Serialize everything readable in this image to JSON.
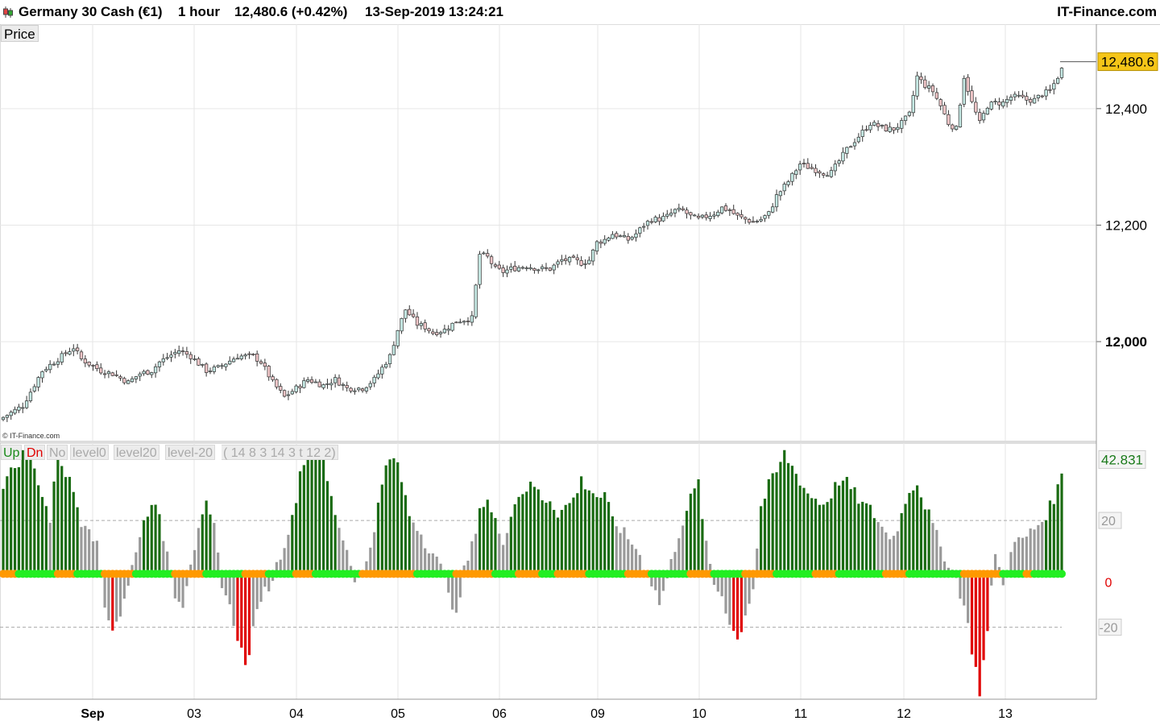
{
  "header": {
    "instrument": "Germany 30 Cash (€1)",
    "timeframe": "1 hour",
    "last": "12,480.6 (+0.42%)",
    "datetime": "13-Sep-2019 13:24:21",
    "brand": "IT-Finance.com"
  },
  "price_panel": {
    "label": "Price",
    "watermark": "© IT-Finance.com",
    "current_price_tag": "12,480.6"
  },
  "indicator_panel": {
    "legend": {
      "up": "Up",
      "dn": "Dn",
      "no": "No",
      "level0": "level0",
      "level20": "level20",
      "levelm20": "level-20",
      "params": "( 14 8 3 14 3 t 12 2)"
    },
    "current_value_tag": "42.831"
  },
  "colors": {
    "up_candle": "#c5e8e3",
    "down_candle": "#f0c6c8",
    "hist_up": "#1a6b12",
    "hist_dn": "#e00000",
    "hist_neutral": "#9a9a9a",
    "dot_up": "#22ee22",
    "dot_dn": "#ff9900",
    "price_tag_bg": "#f5c518",
    "value_tag_text": "#1a7a1a",
    "zero_tag_text": "#e00000"
  },
  "chart_data": [
    {
      "type": "candlestick",
      "title": "Price",
      "x_ticks": [
        "Sep",
        "03",
        "04",
        "05",
        "06",
        "09",
        "10",
        "11",
        "12",
        "13"
      ],
      "y_ticks": [
        12000,
        12200,
        12400
      ],
      "ylim": [
        11830,
        12545
      ],
      "grid": true,
      "last_value": 12480.6,
      "close_path": [
        [
          0,
          11870
        ],
        [
          5,
          11890
        ],
        [
          10,
          11950
        ],
        [
          15,
          11975
        ],
        [
          18,
          11990
        ],
        [
          20,
          11970
        ],
        [
          25,
          11950
        ],
        [
          28,
          11945
        ],
        [
          32,
          11930
        ],
        [
          35,
          11945
        ],
        [
          38,
          11950
        ],
        [
          40,
          11965
        ],
        [
          45,
          11985
        ],
        [
          48,
          11975
        ],
        [
          52,
          11950
        ],
        [
          55,
          11955
        ],
        [
          60,
          11975
        ],
        [
          64,
          11975
        ],
        [
          66,
          11965
        ],
        [
          69,
          11930
        ],
        [
          72,
          11905
        ],
        [
          75,
          11920
        ],
        [
          78,
          11935
        ],
        [
          82,
          11925
        ],
        [
          85,
          11935
        ],
        [
          88,
          11920
        ],
        [
          92,
          11920
        ],
        [
          95,
          11935
        ],
        [
          99,
          11975
        ],
        [
          101,
          12020
        ],
        [
          103,
          12055
        ],
        [
          106,
          12030
        ],
        [
          108,
          12025
        ],
        [
          110,
          12015
        ],
        [
          113,
          12020
        ],
        [
          116,
          12035
        ],
        [
          120,
          12040
        ],
        [
          122,
          12150
        ],
        [
          124,
          12145
        ],
        [
          126,
          12125
        ],
        [
          128,
          12120
        ],
        [
          130,
          12125
        ],
        [
          134,
          12130
        ],
        [
          137,
          12125
        ],
        [
          140,
          12125
        ],
        [
          143,
          12140
        ],
        [
          146,
          12140
        ],
        [
          148,
          12135
        ],
        [
          150,
          12140
        ],
        [
          152,
          12170
        ],
        [
          154,
          12175
        ],
        [
          156,
          12185
        ],
        [
          158,
          12180
        ],
        [
          160,
          12175
        ],
        [
          162,
          12185
        ],
        [
          164,
          12200
        ],
        [
          166,
          12210
        ],
        [
          168,
          12210
        ],
        [
          170,
          12215
        ],
        [
          172,
          12225
        ],
        [
          174,
          12225
        ],
        [
          176,
          12215
        ],
        [
          178,
          12210
        ],
        [
          180,
          12215
        ],
        [
          182,
          12220
        ],
        [
          184,
          12230
        ],
        [
          186,
          12225
        ],
        [
          188,
          12215
        ],
        [
          190,
          12210
        ],
        [
          192,
          12205
        ],
        [
          194,
          12210
        ],
        [
          196,
          12220
        ],
        [
          198,
          12250
        ],
        [
          201,
          12275
        ],
        [
          204,
          12305
        ],
        [
          206,
          12300
        ],
        [
          208,
          12295
        ],
        [
          210,
          12290
        ],
        [
          212,
          12290
        ],
        [
          214,
          12310
        ],
        [
          216,
          12330
        ],
        [
          218,
          12345
        ],
        [
          220,
          12360
        ],
        [
          222,
          12375
        ],
        [
          224,
          12370
        ],
        [
          226,
          12365
        ],
        [
          228,
          12365
        ],
        [
          230,
          12375
        ],
        [
          232,
          12390
        ],
        [
          234,
          12455
        ],
        [
          236,
          12440
        ],
        [
          238,
          12430
        ],
        [
          240,
          12405
        ],
        [
          242,
          12375
        ],
        [
          244,
          12365
        ],
        [
          246,
          12455
        ],
        [
          248,
          12410
        ],
        [
          250,
          12375
        ],
        [
          252,
          12405
        ],
        [
          254,
          12410
        ],
        [
          256,
          12410
        ],
        [
          258,
          12420
        ],
        [
          260,
          12420
        ],
        [
          262,
          12415
        ],
        [
          264,
          12415
        ],
        [
          266,
          12425
        ],
        [
          268,
          12430
        ],
        [
          270,
          12455
        ],
        [
          272,
          12480
        ]
      ],
      "count": 272
    },
    {
      "type": "bar",
      "title": "Up Dn No level0 level20 level-20",
      "y_ticks": [
        20,
        0,
        -20
      ],
      "ylim": [
        -47,
        49
      ],
      "reference_lines": [
        20,
        0,
        -20
      ],
      "last_value": 42.831,
      "values_path": [
        [
          0,
          34
        ],
        [
          3,
          40
        ],
        [
          6,
          47
        ],
        [
          9,
          35
        ],
        [
          12,
          20
        ],
        [
          14,
          45
        ],
        [
          16,
          38
        ],
        [
          18,
          31
        ],
        [
          20,
          20
        ],
        [
          22,
          19
        ],
        [
          24,
          10
        ],
        [
          26,
          -12
        ],
        [
          28,
          -20
        ],
        [
          30,
          -15
        ],
        [
          32,
          -5
        ],
        [
          34,
          10
        ],
        [
          36,
          19
        ],
        [
          38,
          28
        ],
        [
          40,
          20
        ],
        [
          42,
          8
        ],
        [
          44,
          -7
        ],
        [
          46,
          -11
        ],
        [
          48,
          5
        ],
        [
          50,
          15
        ],
        [
          52,
          25
        ],
        [
          54,
          17
        ],
        [
          56,
          -3
        ],
        [
          58,
          -13
        ],
        [
          60,
          -23
        ],
        [
          62,
          -35
        ],
        [
          64,
          -22
        ],
        [
          66,
          -8
        ],
        [
          68,
          -5
        ],
        [
          70,
          3
        ],
        [
          72,
          12
        ],
        [
          74,
          20
        ],
        [
          76,
          38
        ],
        [
          78,
          47
        ],
        [
          80,
          49
        ],
        [
          82,
          42
        ],
        [
          84,
          28
        ],
        [
          86,
          18
        ],
        [
          88,
          9
        ],
        [
          90,
          -1
        ],
        [
          92,
          -1
        ],
        [
          94,
          11
        ],
        [
          96,
          25
        ],
        [
          98,
          40
        ],
        [
          100,
          44
        ],
        [
          102,
          35
        ],
        [
          104,
          22
        ],
        [
          106,
          18
        ],
        [
          108,
          12
        ],
        [
          110,
          8
        ],
        [
          112,
          2
        ],
        [
          114,
          -5
        ],
        [
          116,
          -17
        ],
        [
          118,
          1
        ],
        [
          120,
          10
        ],
        [
          122,
          25
        ],
        [
          124,
          27
        ],
        [
          126,
          19
        ],
        [
          128,
          13
        ],
        [
          130,
          22
        ],
        [
          132,
          30
        ],
        [
          134,
          32
        ],
        [
          136,
          33
        ],
        [
          138,
          28
        ],
        [
          140,
          28
        ],
        [
          142,
          23
        ],
        [
          144,
          25
        ],
        [
          146,
          28
        ],
        [
          148,
          35
        ],
        [
          150,
          32
        ],
        [
          152,
          29
        ],
        [
          154,
          29
        ],
        [
          156,
          20
        ],
        [
          158,
          17
        ],
        [
          160,
          13
        ],
        [
          162,
          10
        ],
        [
          164,
          3
        ],
        [
          166,
          -3
        ],
        [
          168,
          -11
        ],
        [
          170,
          -2
        ],
        [
          172,
          10
        ],
        [
          174,
          20
        ],
        [
          176,
          28
        ],
        [
          178,
          34
        ],
        [
          180,
          10
        ],
        [
          182,
          -4
        ],
        [
          184,
          -8
        ],
        [
          186,
          -18
        ],
        [
          188,
          -25
        ],
        [
          190,
          -15
        ],
        [
          192,
          -5
        ],
        [
          194,
          25
        ],
        [
          196,
          33
        ],
        [
          198,
          38
        ],
        [
          200,
          45
        ],
        [
          202,
          40
        ],
        [
          204,
          35
        ],
        [
          206,
          30
        ],
        [
          208,
          28
        ],
        [
          210,
          26
        ],
        [
          212,
          30
        ],
        [
          214,
          35
        ],
        [
          216,
          34
        ],
        [
          218,
          30
        ],
        [
          220,
          26
        ],
        [
          222,
          24
        ],
        [
          224,
          20
        ],
        [
          226,
          15
        ],
        [
          228,
          14
        ],
        [
          230,
          22
        ],
        [
          232,
          32
        ],
        [
          234,
          34
        ],
        [
          236,
          26
        ],
        [
          238,
          18
        ],
        [
          240,
          10
        ],
        [
          242,
          4
        ],
        [
          244,
          -2
        ],
        [
          246,
          -12
        ],
        [
          248,
          -28
        ],
        [
          250,
          -44
        ],
        [
          252,
          -22
        ],
        [
          254,
          9
        ],
        [
          256,
          -5
        ],
        [
          258,
          10
        ],
        [
          260,
          12
        ],
        [
          262,
          14
        ],
        [
          264,
          17
        ],
        [
          266,
          20
        ],
        [
          268,
          25
        ],
        [
          270,
          32
        ],
        [
          272,
          42.8
        ]
      ],
      "dot_states": [
        "dn",
        0,
        "up",
        4,
        "dn",
        14,
        "up",
        19,
        "dn",
        26,
        "up",
        34,
        "dn",
        44,
        "up",
        52,
        "dn",
        62,
        "up",
        68,
        "dn",
        75,
        "up",
        80,
        "dn",
        92,
        "up",
        106,
        "dn",
        116,
        "up",
        126,
        "dn",
        132,
        "up",
        138,
        "dn",
        142,
        "up",
        150,
        "dn",
        160,
        "up",
        166,
        "dn",
        176,
        "up",
        182,
        "dn",
        190,
        "up",
        198,
        "dn",
        208,
        "up",
        214,
        "dn",
        226,
        "up",
        232,
        "dn",
        246,
        "up",
        256,
        "dn",
        262,
        "up",
        264,
        "dn",
        274
      ]
    }
  ]
}
